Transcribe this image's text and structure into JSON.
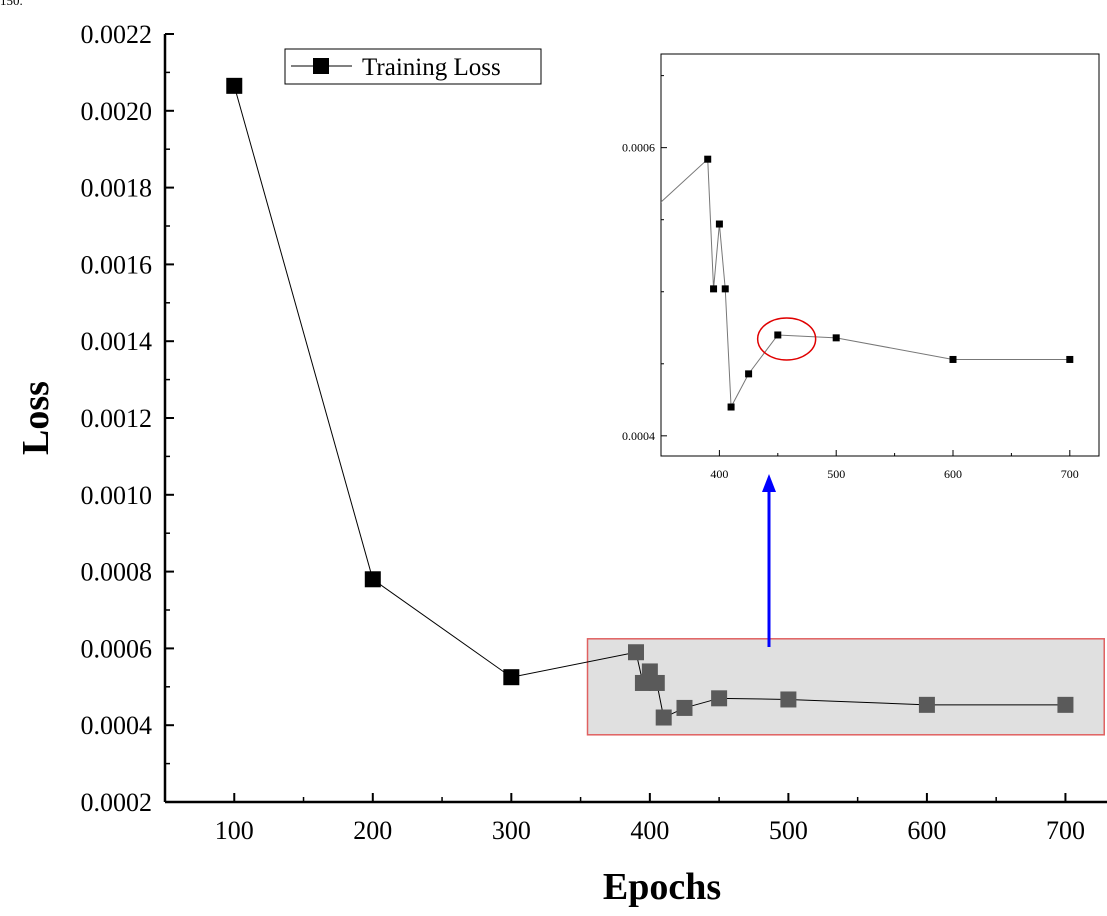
{
  "corner_label": "150.",
  "chart_data": [
    {
      "id": "main",
      "type": "line",
      "xlabel": "Epochs",
      "ylabel": "Loss",
      "xlim": [
        50,
        730
      ],
      "ylim": [
        0.0002,
        0.0022
      ],
      "x_ticks": [
        100,
        200,
        300,
        400,
        500,
        600,
        700
      ],
      "x_tick_labels": [
        "100",
        "200",
        "300",
        "400",
        "500",
        "600",
        "700"
      ],
      "y_ticks": [
        0.0002,
        0.0004,
        0.0006,
        0.0008,
        0.001,
        0.0012,
        0.0014,
        0.0016,
        0.0018,
        0.002,
        0.0022
      ],
      "y_tick_labels": [
        "0.0002",
        "0.0004",
        "0.0006",
        "0.0008",
        "0.0010",
        "0.0012",
        "0.0014",
        "0.0016",
        "0.0018",
        "0.0020",
        "0.0022"
      ],
      "legend": {
        "position": "top-left",
        "entries": [
          "Training Loss"
        ]
      },
      "series": [
        {
          "name": "Training Loss",
          "color": "#000000",
          "marker": "square",
          "x": [
            100,
            200,
            300,
            390,
            395,
            400,
            405,
            410,
            425,
            450,
            500,
            600,
            700
          ],
          "y": [
            0.002065,
            0.00078,
            0.000525,
            0.00059,
            0.00051,
            0.00054,
            0.00051,
            0.00042,
            0.000445,
            0.00047,
            0.000467,
            0.000453,
            0.000453
          ]
        }
      ],
      "highlight_region": {
        "xlim": [
          355,
          728
        ],
        "ylim": [
          0.000375,
          0.000625
        ],
        "fill": "#e0e0e0",
        "stroke": "#e06060"
      },
      "annotation": {
        "type": "arrow",
        "color": "#0000ff",
        "from": [
          447,
          0.00066
        ],
        "to": "inset"
      }
    },
    {
      "id": "inset",
      "type": "line",
      "xlim": [
        350,
        725
      ],
      "ylim": [
        0.000386,
        0.000665
      ],
      "x_ticks": [
        400,
        500,
        600,
        700
      ],
      "x_tick_labels": [
        "400",
        "500",
        "600",
        "700"
      ],
      "y_ticks": [
        0.0004,
        0.0006
      ],
      "y_tick_labels": [
        "0.0004",
        "0.0006"
      ],
      "series": [
        {
          "name": "",
          "color": "#000000",
          "marker": "square",
          "x": [
            300,
            390,
            395,
            400,
            405,
            410,
            425,
            450,
            500,
            600,
            700
          ],
          "y": [
            0.000525,
            0.000592,
            0.000502,
            0.000547,
            0.000502,
            0.00042,
            0.000443,
            0.00047,
            0.000468,
            0.000453,
            0.000453
          ]
        }
      ],
      "highlight_ellipse": {
        "x": 455,
        "y": 0.00047,
        "color": "#e00000"
      }
    }
  ]
}
